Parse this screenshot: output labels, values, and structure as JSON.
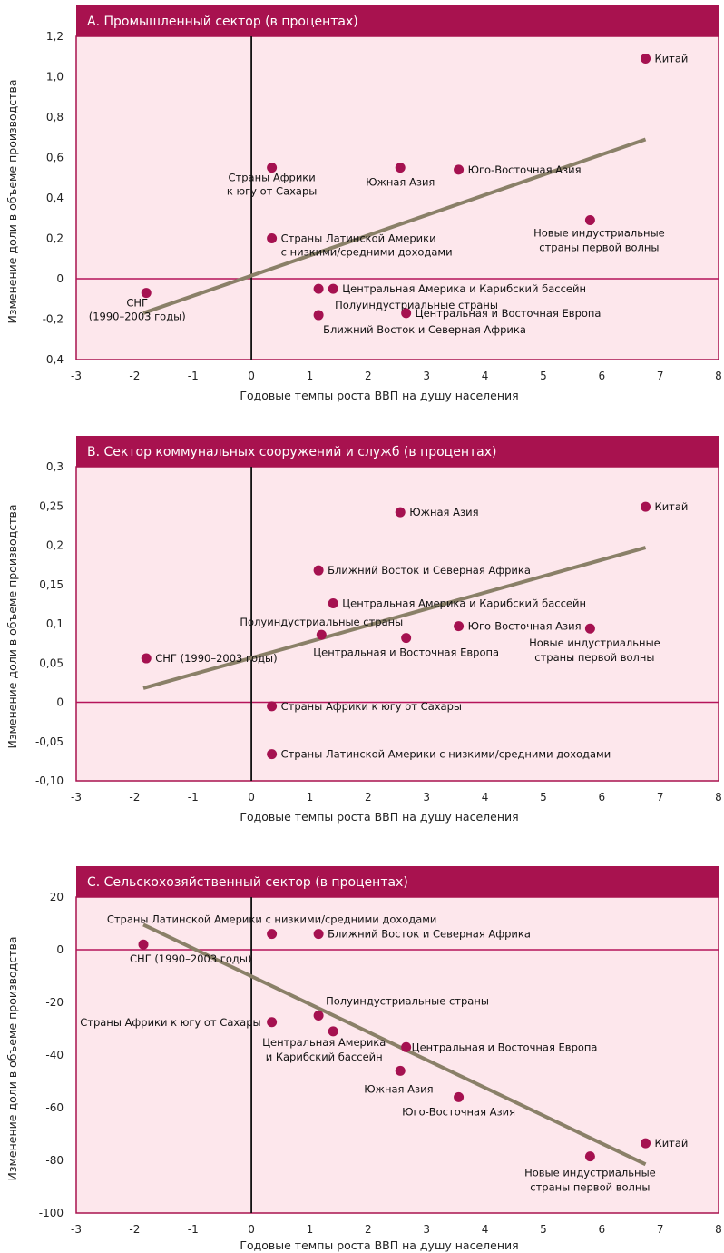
{
  "colors": {
    "title_band": "#A8124F",
    "plot_bg": "#FDE7EC",
    "plot_border": "#A8124F",
    "zero_line": "#B5145A",
    "vertical_axis": "#111111",
    "marker": "#A51150",
    "trend": "#8A8068"
  },
  "chart_data": [
    {
      "type": "scatter",
      "title": "А. Промышленный сектор (в процентах)",
      "xlabel": "Годовые темпы роста ВВП на душу населения",
      "ylabel": "Изменение доли в объеме производства",
      "xlim": [
        -3,
        8
      ],
      "ylim": [
        -0.4,
        1.2
      ],
      "x_ticks": [
        "-3",
        "-2",
        "-1",
        "0",
        "1",
        "2",
        "3",
        "4",
        "5",
        "6",
        "7",
        "8"
      ],
      "y_ticks": [
        "-0,4",
        "-0,2",
        "0",
        "0,2",
        "0,4",
        "0,6",
        "0,8",
        "1,0",
        "1,2"
      ],
      "trend": {
        "x": [
          -1.85,
          6.75
        ],
        "y": [
          -0.17,
          0.69
        ]
      },
      "points": [
        {
          "label": "СНГ",
          "label2": "(1990–2003 годы)",
          "x": -1.8,
          "y": -0.07
        },
        {
          "label": "Страны Африки",
          "label2": "к югу от Сахары",
          "x": 0.35,
          "y": 0.55
        },
        {
          "label": "Страны Латинской Америки",
          "label2": "с низкими/средними доходами",
          "x": 0.35,
          "y": 0.2
        },
        {
          "label": "Полуиндустриальные страны",
          "x": 1.15,
          "y": -0.05
        },
        {
          "label": "Центральная Америка и Карибский бассейн",
          "x": 1.4,
          "y": -0.05
        },
        {
          "label": "Ближний Восток и Северная Африка",
          "x": 1.15,
          "y": -0.18
        },
        {
          "label": "Южная Азия",
          "x": 2.55,
          "y": 0.55
        },
        {
          "label": "Центральная и Восточная Европа",
          "x": 2.65,
          "y": -0.17
        },
        {
          "label": "Юго-Восточная Азия",
          "x": 3.55,
          "y": 0.54
        },
        {
          "label": "Новые индустриальные",
          "label2": "страны первой волны",
          "x": 5.8,
          "y": 0.29
        },
        {
          "label": "Китай",
          "x": 6.75,
          "y": 1.09
        }
      ]
    },
    {
      "type": "scatter",
      "title": "В. Сектор коммунальных сооружений и служб (в процентах)",
      "xlabel": "Годовые темпы роста ВВП на душу населения",
      "ylabel": "Изменение доли в объеме производства",
      "xlim": [
        -3,
        8
      ],
      "ylim": [
        -0.1,
        0.3
      ],
      "x_ticks": [
        "-3",
        "-2",
        "-1",
        "0",
        "1",
        "2",
        "3",
        "4",
        "5",
        "6",
        "7",
        "8"
      ],
      "y_ticks": [
        "-0,10",
        "-0,05",
        "0",
        "0,05",
        "0,1",
        "0,15",
        "0,2",
        "0,25",
        "0,3"
      ],
      "trend": {
        "x": [
          -1.85,
          6.75
        ],
        "y": [
          0.018,
          0.197
        ]
      },
      "points": [
        {
          "label": "СНГ (1990–2003 годы)",
          "x": -1.8,
          "y": 0.056
        },
        {
          "label": "Страны Африки к югу от Сахары",
          "x": 0.35,
          "y": -0.005
        },
        {
          "label": "Страны Латинской Америки с низкими/средними доходами",
          "x": 0.35,
          "y": -0.066
        },
        {
          "label": "Ближний Восток и Северная Африка",
          "x": 1.15,
          "y": 0.168
        },
        {
          "label": "Центральная Америка и Карибский бассейн",
          "x": 1.4,
          "y": 0.126
        },
        {
          "label": "Полуиндустриальные страны",
          "x": 1.2,
          "y": 0.086
        },
        {
          "label": "Южная Азия",
          "x": 2.55,
          "y": 0.242
        },
        {
          "label": "Центральная и Восточная Европа",
          "x": 2.65,
          "y": 0.082
        },
        {
          "label": "Юго-Восточная Азия",
          "x": 3.55,
          "y": 0.097
        },
        {
          "label": "Новые индустриальные",
          "label2": "страны первой волны",
          "x": 5.8,
          "y": 0.094
        },
        {
          "label": "Китай",
          "x": 6.75,
          "y": 0.249
        }
      ]
    },
    {
      "type": "scatter",
      "title": "С. Сельскохозяйственный сектор (в процентах)",
      "xlabel": "Годовые темпы роста ВВП на душу населения",
      "ylabel": "Изменение доли в объеме производства",
      "xlim": [
        -3,
        8
      ],
      "ylim": [
        -100,
        20
      ],
      "x_ticks": [
        "-3",
        "-2",
        "-1",
        "0",
        "1",
        "2",
        "3",
        "4",
        "5",
        "6",
        "7",
        "8"
      ],
      "y_ticks": [
        "-100",
        "-80",
        "-60",
        "-40",
        "-20",
        "0",
        "20"
      ],
      "trend": {
        "x": [
          -1.85,
          6.75
        ],
        "y": [
          9.5,
          -81.5
        ]
      },
      "points": [
        {
          "label": "СНГ (1990–2003 годы)",
          "x": -1.85,
          "y": 2
        },
        {
          "label": "Страны Латинской Америки с низкими/средними доходами",
          "x": 0.35,
          "y": 6
        },
        {
          "label": "Ближний Восток и Северная Африка",
          "x": 1.15,
          "y": 6
        },
        {
          "label": "Страны Африки к югу от Сахары",
          "x": 0.35,
          "y": -27.5
        },
        {
          "label": "Полуиндустриальные страны",
          "x": 1.15,
          "y": -25
        },
        {
          "label": "Центральная Америка",
          "label2": "и Карибский бассейн",
          "x": 1.4,
          "y": -31
        },
        {
          "label": "Центральная и Восточная Европа",
          "x": 2.65,
          "y": -37
        },
        {
          "label": "Южная Азия",
          "x": 2.55,
          "y": -46
        },
        {
          "label": "Юго-Восточная Азия",
          "x": 3.55,
          "y": -56
        },
        {
          "label": "Новые индустриальные",
          "label2": "страны первой волны",
          "x": 5.8,
          "y": -78.5
        },
        {
          "label": "Китай",
          "x": 6.75,
          "y": -73.5
        }
      ]
    }
  ]
}
